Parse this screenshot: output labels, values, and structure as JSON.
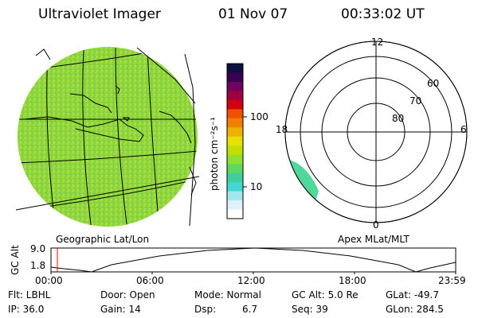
{
  "header": {
    "title": "Ultraviolet Imager",
    "date": "01 Nov 07",
    "time": "00:33:02 UT"
  },
  "colorbar": {
    "unit_label": "photon cm⁻²s⁻¹",
    "ticks": [
      "100",
      "10"
    ],
    "colors": [
      "#101040",
      "#380050",
      "#700060",
      "#a00040",
      "#d00010",
      "#f05000",
      "#f08000",
      "#f0b000",
      "#e8e000",
      "#c0e000",
      "#90e030",
      "#60d860",
      "#40d0a0",
      "#40d8d0",
      "#a0e8f0",
      "#e0f0f8",
      "#ffffff"
    ]
  },
  "geo_panel": {
    "label": "Geographic Lat/Lon",
    "image_color": "#8ed63a"
  },
  "polar_panel": {
    "label": "Apex MLat/MLT",
    "mlt_labels": {
      "top": "12",
      "left": "18",
      "right": "6",
      "bottom": "0"
    },
    "mlat_labels": [
      "60",
      "70",
      "80"
    ],
    "image_color": "#4fd89a"
  },
  "timeline": {
    "ylabel": "GC Alt",
    "ymax_label": "9.0",
    "ymin_label": "1.8",
    "xticks": [
      "00:00",
      "06:00",
      "12:00",
      "18:00",
      "23:59"
    ],
    "current_marker_color": "#ff0000"
  },
  "footer": {
    "row1": [
      "Flt: LBHL",
      "Door: Open",
      "Mode: Normal",
      "GC Alt: 5.0 Re",
      "GLat: -49.7"
    ],
    "row2": [
      "IP: 36.0",
      "Gain: 14",
      "Dsp:",
      "6.7",
      "Seq: 39",
      "GLon: 284.5"
    ]
  }
}
